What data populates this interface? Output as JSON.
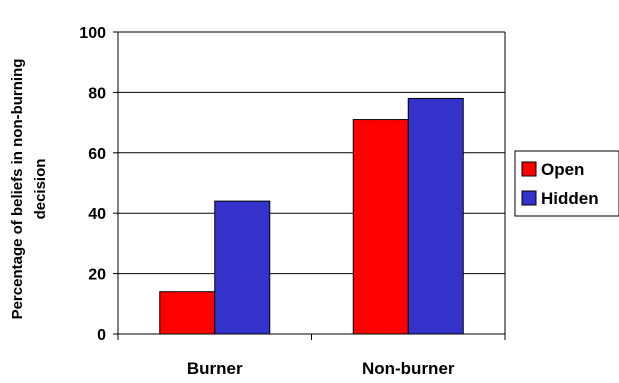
{
  "chart_data": {
    "type": "bar",
    "categories": [
      "Burner",
      "Non-burner"
    ],
    "series": [
      {
        "name": "Open",
        "values": [
          14,
          71
        ],
        "color": "#ff0000"
      },
      {
        "name": "Hidden",
        "values": [
          44,
          78
        ],
        "color": "#3333cc"
      }
    ],
    "ylabel": "Percentage of beliefs in non-burning decision",
    "ylabel_lines": [
      "Percentage of beliefs in non-burning",
      "decision"
    ],
    "xlabel": "",
    "ylim": [
      0,
      100
    ],
    "yticks": [
      "0",
      "20",
      "40",
      "60",
      "80",
      "100"
    ],
    "grid": true,
    "legend_position": "right"
  }
}
